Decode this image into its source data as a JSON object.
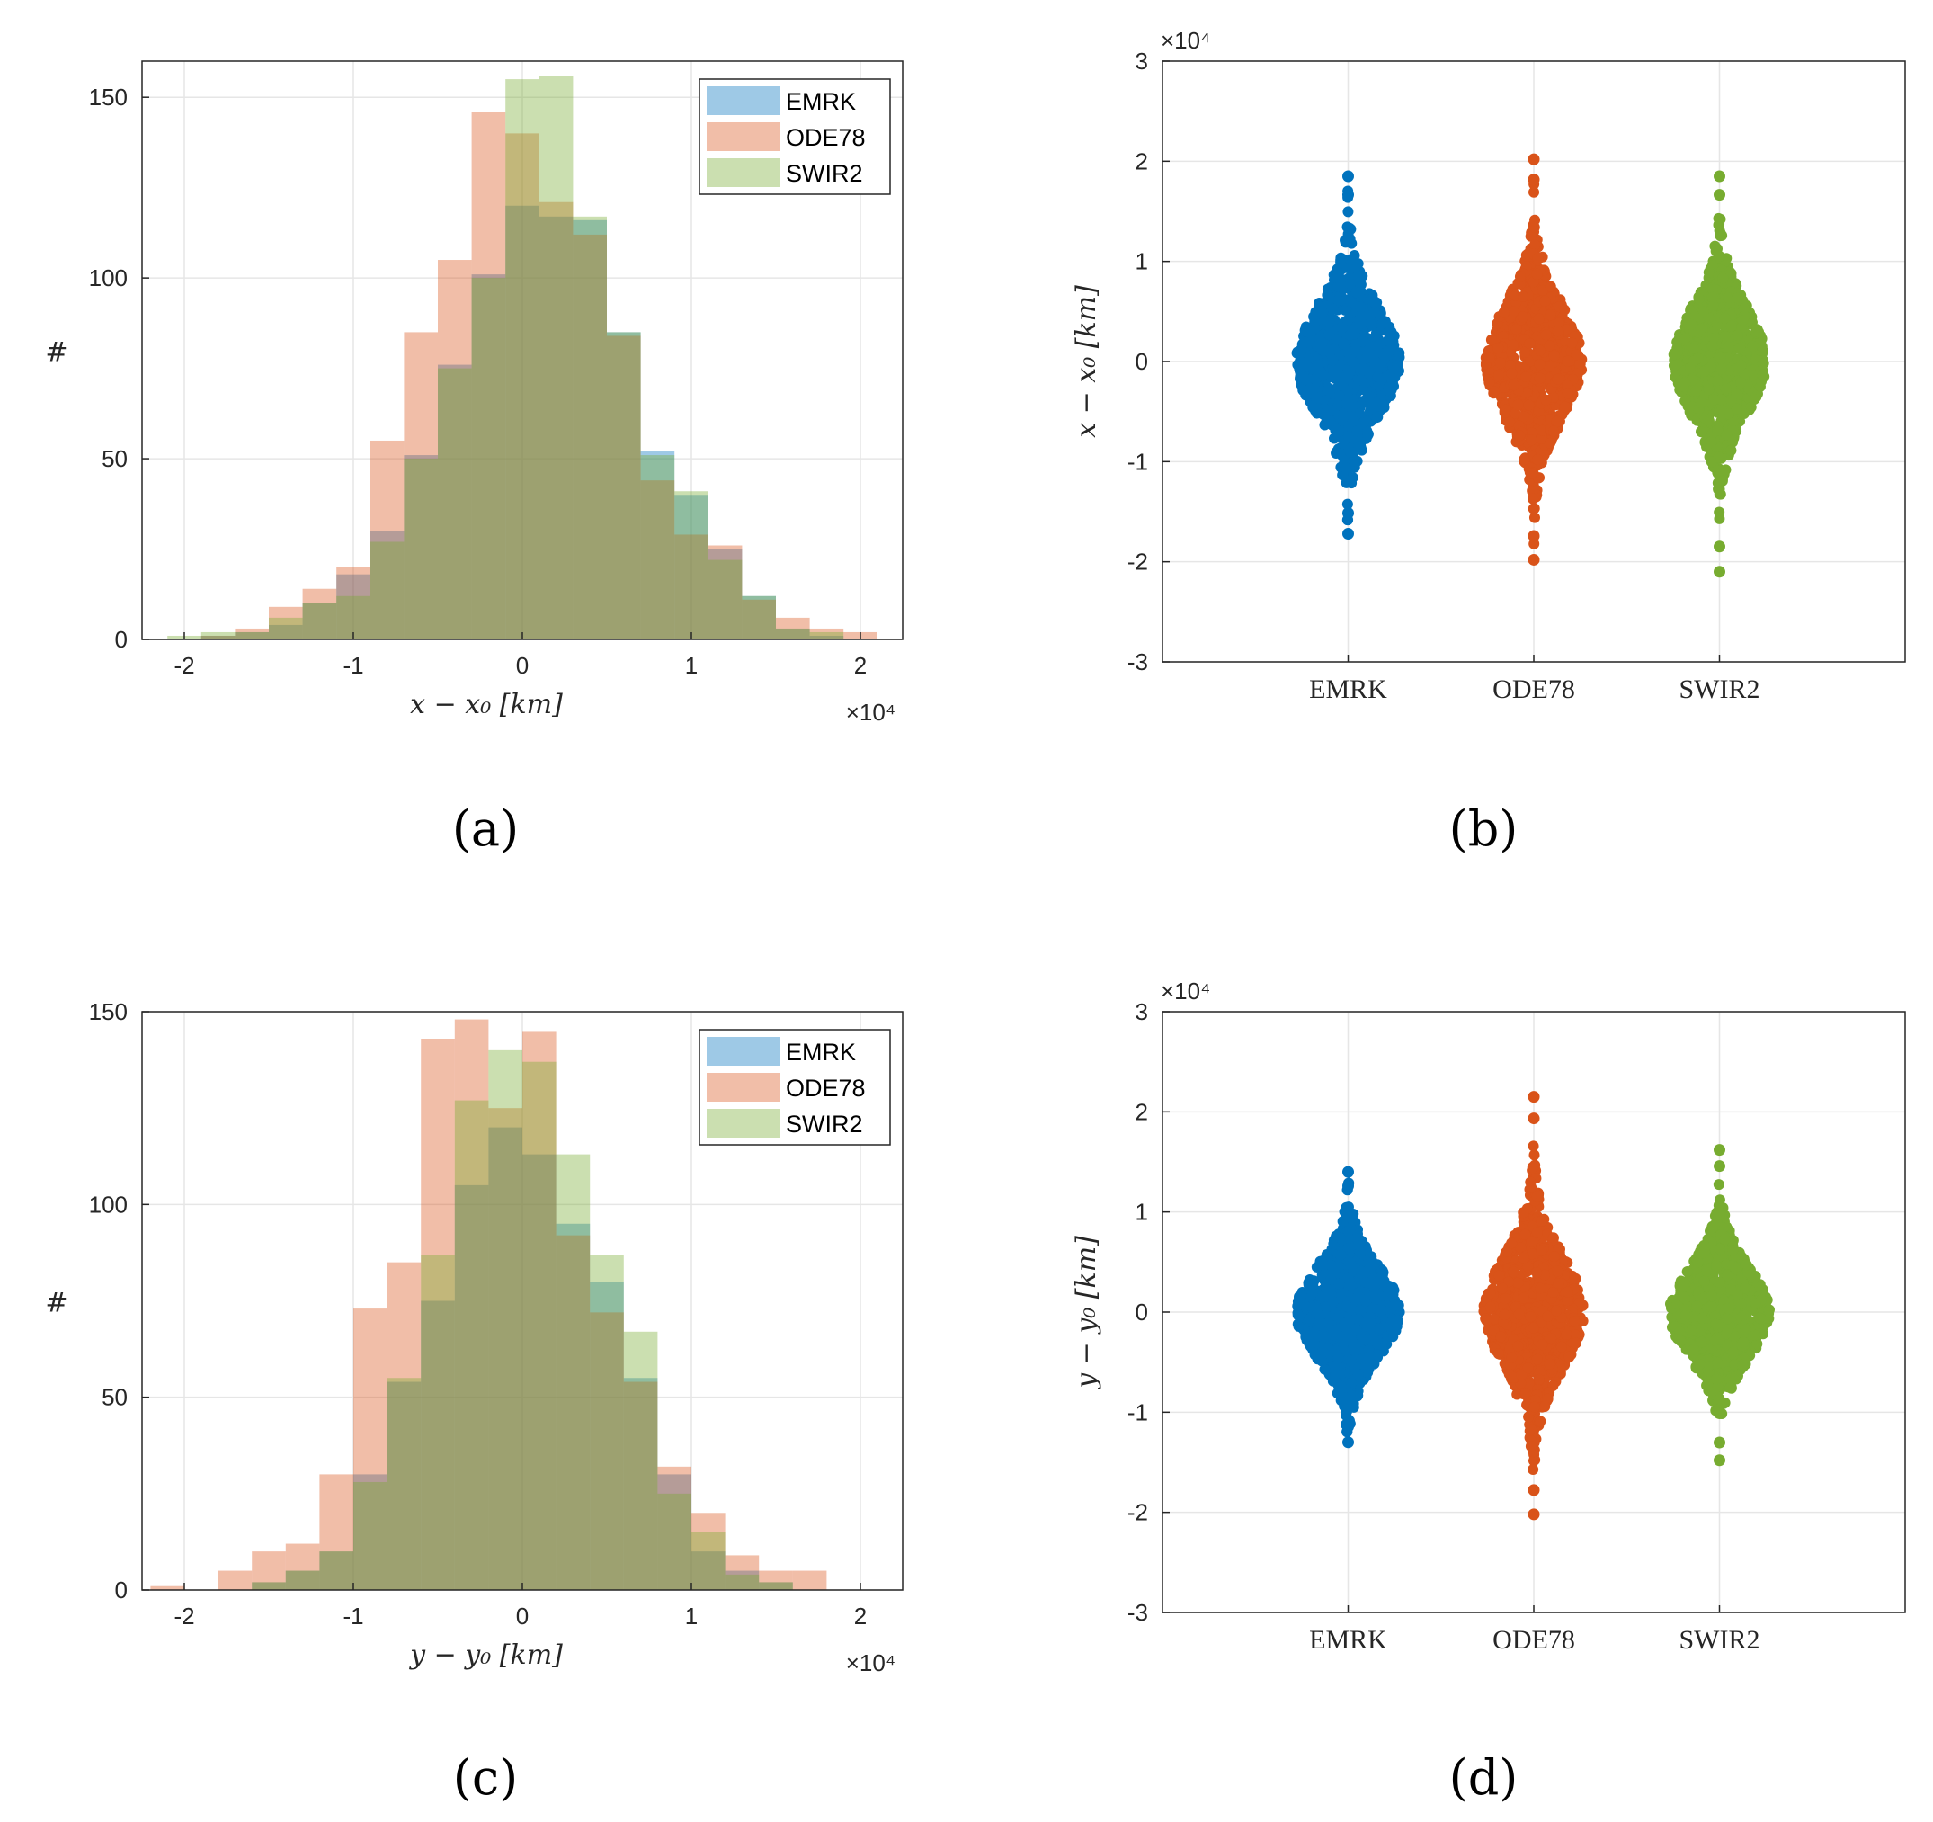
{
  "chart_data": [
    {
      "type": "histogram",
      "panel": "(a)",
      "xlabel": "x − x₀ [km]",
      "ylabel": "#",
      "xlim": [
        -2.25,
        2.25
      ],
      "ylim": [
        0,
        160
      ],
      "x_multiplier": "×10⁴",
      "xticks": [
        -2,
        -1,
        0,
        1,
        2
      ],
      "yticks": [
        0,
        50,
        100,
        150
      ],
      "bin_edges": [
        -2.1,
        -1.9,
        -1.7,
        -1.5,
        -1.3,
        -1.1,
        -0.9,
        -0.7,
        -0.5,
        -0.3,
        -0.1,
        0.1,
        0.3,
        0.5,
        0.7,
        0.9,
        1.1,
        1.3,
        1.5,
        1.7,
        1.9,
        2.1
      ],
      "legend": [
        "EMRK",
        "ODE78",
        "SWIR2"
      ],
      "series": [
        {
          "name": "EMRK",
          "color": "#0072BD",
          "values": [
            0,
            1,
            2,
            4,
            10,
            18,
            30,
            51,
            76,
            101,
            120,
            117,
            116,
            85,
            52,
            40,
            25,
            12,
            3,
            1,
            0
          ]
        },
        {
          "name": "ODE78",
          "color": "#D95319",
          "values": [
            0,
            1,
            3,
            9,
            14,
            20,
            55,
            85,
            105,
            146,
            140,
            121,
            112,
            84,
            44,
            29,
            26,
            11,
            6,
            3,
            2
          ]
        },
        {
          "name": "SWIR2",
          "color": "#77AC30",
          "values": [
            1,
            2,
            2,
            6,
            10,
            12,
            27,
            50,
            75,
            100,
            155,
            156,
            117,
            85,
            51,
            41,
            22,
            12,
            3,
            2,
            0
          ]
        }
      ]
    },
    {
      "type": "swarm",
      "panel": "(b)",
      "ylabel": "x − x₀ [km]",
      "ylim": [
        -3,
        3
      ],
      "y_multiplier": "×10⁴",
      "yticks": [
        -3,
        -2,
        -1,
        0,
        1,
        2,
        3
      ],
      "categories": [
        "EMRK",
        "ODE78",
        "SWIR2"
      ],
      "series": [
        {
          "name": "EMRK",
          "color": "#0072BD",
          "sd": 0.5,
          "max": 1.85,
          "min": -1.72,
          "half_width": 0.28
        },
        {
          "name": "ODE78",
          "color": "#D95319",
          "sd": 0.52,
          "max": 2.02,
          "min": -1.98,
          "half_width": 0.26
        },
        {
          "name": "SWIR2",
          "color": "#77AC30",
          "sd": 0.5,
          "max": 1.85,
          "min": -2.1,
          "half_width": 0.25
        }
      ]
    },
    {
      "type": "histogram",
      "panel": "(c)",
      "xlabel": "y − y₀ [km]",
      "ylabel": "#",
      "xlim": [
        -2.25,
        2.25
      ],
      "ylim": [
        0,
        150
      ],
      "x_multiplier": "×10⁴",
      "xticks": [
        -2,
        -1,
        0,
        1,
        2
      ],
      "yticks": [
        0,
        50,
        100,
        150
      ],
      "bin_edges": [
        -2.2,
        -2.0,
        -1.8,
        -1.6,
        -1.4,
        -1.2,
        -1.0,
        -0.8,
        -0.6,
        -0.4,
        -0.2,
        0.0,
        0.2,
        0.4,
        0.6,
        0.8,
        1.0,
        1.2,
        1.4,
        1.6,
        1.8,
        2.0,
        2.2
      ],
      "legend": [
        "EMRK",
        "ODE78",
        "SWIR2"
      ],
      "series": [
        {
          "name": "EMRK",
          "color": "#0072BD",
          "values": [
            0,
            0,
            0,
            2,
            5,
            10,
            30,
            54,
            75,
            105,
            120,
            113,
            95,
            80,
            55,
            30,
            10,
            5,
            2,
            0,
            0,
            0
          ]
        },
        {
          "name": "ODE78",
          "color": "#D95319",
          "values": [
            1,
            0,
            5,
            10,
            12,
            30,
            73,
            85,
            143,
            148,
            125,
            145,
            92,
            72,
            54,
            32,
            20,
            9,
            5,
            5,
            0,
            0
          ]
        },
        {
          "name": "SWIR2",
          "color": "#77AC30",
          "values": [
            0,
            0,
            0,
            2,
            5,
            10,
            28,
            55,
            87,
            127,
            140,
            137,
            113,
            87,
            67,
            25,
            15,
            4,
            2,
            0,
            0,
            0
          ]
        }
      ]
    },
    {
      "type": "swarm",
      "panel": "(d)",
      "ylabel": "y − y₀ [km]",
      "ylim": [
        -3,
        3
      ],
      "y_multiplier": "×10⁴",
      "yticks": [
        -3,
        -2,
        -1,
        0,
        1,
        2,
        3
      ],
      "categories": [
        "EMRK",
        "ODE78",
        "SWIR2"
      ],
      "series": [
        {
          "name": "EMRK",
          "color": "#0072BD",
          "sd": 0.42,
          "max": 1.4,
          "min": -1.3,
          "half_width": 0.28
        },
        {
          "name": "ODE78",
          "color": "#D95319",
          "sd": 0.52,
          "max": 2.15,
          "min": -2.02,
          "half_width": 0.27
        },
        {
          "name": "SWIR2",
          "color": "#77AC30",
          "sd": 0.42,
          "max": 1.62,
          "min": -1.48,
          "half_width": 0.27
        }
      ]
    }
  ]
}
